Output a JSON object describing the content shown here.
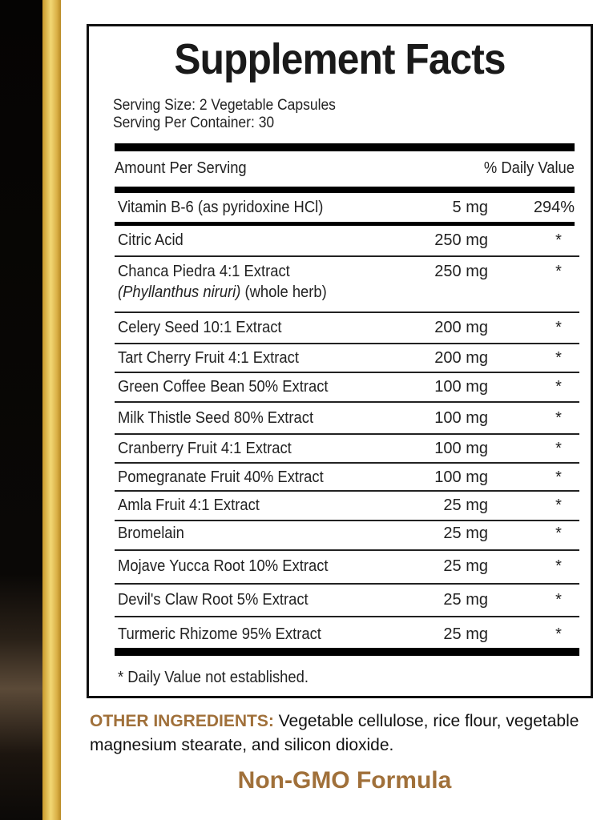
{
  "title": "Supplement Facts",
  "serving_size": "Serving Size: 2 Vegetable Capsules",
  "servings_per_container": "Serving Per Container: 30",
  "header": {
    "amount": "Amount Per Serving",
    "dv": "% Daily Value"
  },
  "rows": [
    {
      "name": "Vitamin B-6 (as pyridoxine HCl)",
      "amount": "5 mg",
      "dv": "294%"
    },
    {
      "name": "Citric Acid",
      "amount": "250 mg",
      "dv": "*"
    },
    {
      "name": "Chanca Piedra 4:1 Extract",
      "latin": "(Phyllanthus niruri)",
      "part": " (whole herb)",
      "amount": "250 mg",
      "dv": "*"
    },
    {
      "name": "Celery Seed 10:1 Extract",
      "amount": "200 mg",
      "dv": "*"
    },
    {
      "name": "Tart Cherry Fruit 4:1 Extract",
      "amount": "200 mg",
      "dv": "*"
    },
    {
      "name": "Green Coffee Bean 50% Extract",
      "amount": "100 mg",
      "dv": "*"
    },
    {
      "name": "Milk Thistle Seed 80% Extract",
      "amount": "100 mg",
      "dv": "*"
    },
    {
      "name": "Cranberry Fruit 4:1 Extract",
      "amount": "100 mg",
      "dv": "*"
    },
    {
      "name": "Pomegranate Fruit 40% Extract",
      "amount": "100 mg",
      "dv": "*"
    },
    {
      "name": "Amla Fruit 4:1 Extract",
      "amount": "25 mg",
      "dv": "*"
    },
    {
      "name": "Bromelain",
      "amount": "25 mg",
      "dv": "*"
    },
    {
      "name": "Mojave Yucca Root 10% Extract",
      "amount": "25 mg",
      "dv": "*"
    },
    {
      "name": "Devil's Claw Root 5% Extract",
      "amount": "25 mg",
      "dv": "*"
    },
    {
      "name": "Turmeric Rhizome 95% Extract",
      "amount": "25 mg",
      "dv": "*"
    }
  ],
  "footnote": "* Daily Value not established.",
  "other_ingredients": {
    "label": "OTHER INGREDIENTS:",
    "text": " Vegetable cellulose, rice flour, vegetable magnesium stearate, and silicon dioxide."
  },
  "badge": "Non-GMO Formula",
  "colors": {
    "accent": "#a0703a",
    "gold": "#e8c65a"
  }
}
